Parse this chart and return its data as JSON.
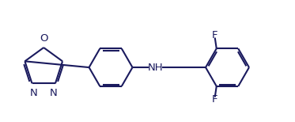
{
  "bond_color": "#1a1a5e",
  "bg_color": "#ffffff",
  "line_width": 1.5,
  "font_size": 9.5,
  "fig_width": 3.73,
  "fig_height": 1.54,
  "dpi": 100,
  "xlim": [
    0.0,
    9.2
  ],
  "ylim": [
    1.8,
    5.2
  ]
}
